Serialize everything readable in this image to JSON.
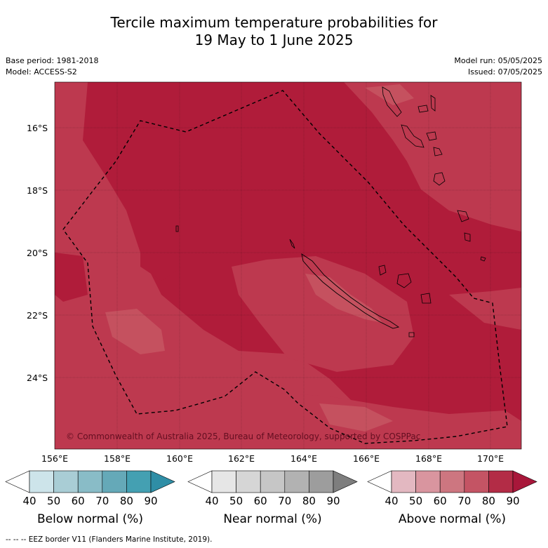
{
  "title": {
    "line1": "Tercile maximum temperature probabilities for",
    "line2": "19 May to 1 June 2025"
  },
  "meta": {
    "base_period": "Base period: 1981-2018",
    "model": "Model: ACCESS-S2",
    "model_run": "Model run: 05/05/2025",
    "issued": "Issued: 07/05/2025"
  },
  "map": {
    "lat_labels": [
      "16°S",
      "18°S",
      "20°S",
      "22°S",
      "24°S"
    ],
    "lon_labels": [
      "156°E",
      "158°E",
      "160°E",
      "162°E",
      "164°E",
      "166°E",
      "168°E",
      "170°E"
    ],
    "copyright": "© Commonwealth of Australia 2025, Bureau of Meteorology, supported by COSPPac",
    "colors": {
      "ocean_high": "#b01c3a",
      "ocean_mid": "#bf3a50",
      "ocean_low": "#c95160"
    }
  },
  "colorbars": [
    {
      "label": "Below normal (%)",
      "ticks": [
        "40",
        "50",
        "60",
        "70",
        "80",
        "90"
      ],
      "colors": [
        "#ffffff",
        "#cde4ea",
        "#a9cdd5",
        "#89bcc7",
        "#65a9b8",
        "#44a0b2",
        "#2f8ea6"
      ]
    },
    {
      "label": "Near normal (%)",
      "ticks": [
        "40",
        "50",
        "60",
        "70",
        "80",
        "90"
      ],
      "colors": [
        "#ffffff",
        "#e6e6e6",
        "#d6d6d6",
        "#c6c6c6",
        "#b2b2b2",
        "#9d9d9d",
        "#7e7e7e"
      ]
    },
    {
      "label": "Above normal (%)",
      "ticks": [
        "40",
        "50",
        "60",
        "70",
        "80",
        "90"
      ],
      "colors": [
        "#ffffff",
        "#e3b8c1",
        "#d9959f",
        "#cd7680",
        "#c45464",
        "#b32c46",
        "#a8173a"
      ]
    }
  ],
  "footnote": "--  --  -- EEZ border V11 (Flanders Marine Institute, 2019)."
}
